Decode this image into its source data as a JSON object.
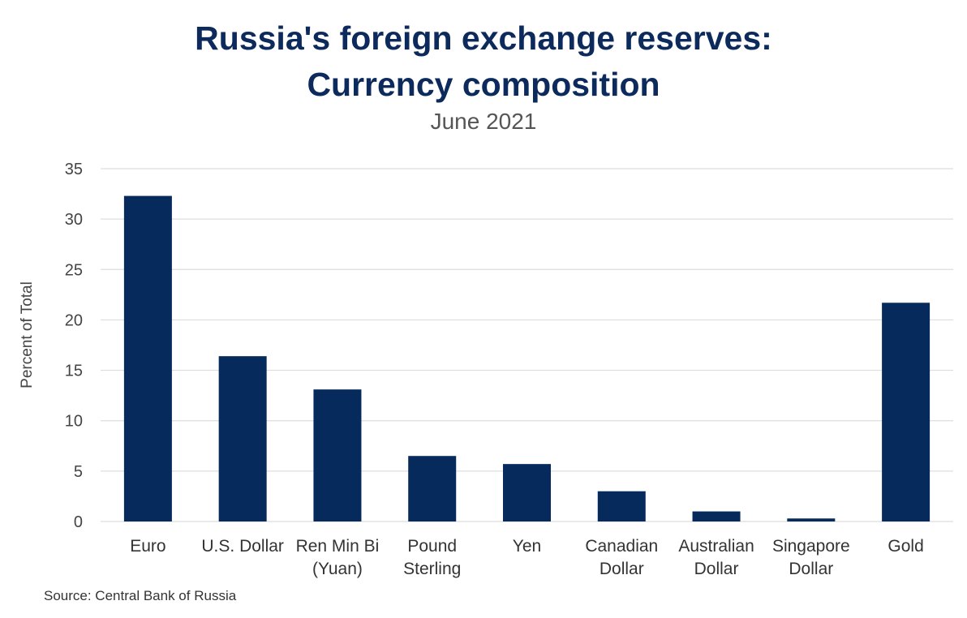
{
  "chart_data": {
    "type": "bar",
    "title_lines": [
      "Russia's foreign exchange reserves:",
      "Currency composition"
    ],
    "subtitle": "June 2021",
    "xlabel": "",
    "ylabel": "Percent of Total",
    "source": "Source: Central Bank of Russia",
    "categories": [
      [
        "Euro"
      ],
      [
        "U.S. Dollar"
      ],
      [
        "Ren Min Bi",
        "(Yuan)"
      ],
      [
        "Pound",
        "Sterling"
      ],
      [
        "Yen"
      ],
      [
        "Canadian",
        "Dollar"
      ],
      [
        "Australian",
        "Dollar"
      ],
      [
        "Singapore",
        "Dollar"
      ],
      [
        "Gold"
      ]
    ],
    "values": [
      32.3,
      16.4,
      13.1,
      6.5,
      5.7,
      3.0,
      1.0,
      0.3,
      21.7
    ],
    "ylim": [
      0,
      35
    ],
    "yticks": [
      "0",
      "5",
      "10",
      "15",
      "20",
      "25",
      "30",
      "35"
    ],
    "grid": true,
    "legend": "none",
    "colors": {
      "bar": "#062a5c",
      "grid": "#dddddd",
      "title": "#0d2a5c"
    }
  }
}
